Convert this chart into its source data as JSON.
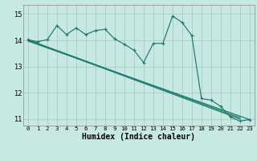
{
  "background_color": "#c8e8e4",
  "grid_color": "#a8ccc8",
  "line_color": "#1a7a6e",
  "xlabel": "Humidex (Indice chaleur)",
  "xlim": [
    -0.5,
    23.5
  ],
  "ylim": [
    10.75,
    15.35
  ],
  "yticks": [
    11,
    12,
    13,
    14,
    15
  ],
  "xticks": [
    0,
    1,
    2,
    3,
    4,
    5,
    6,
    7,
    8,
    9,
    10,
    11,
    12,
    13,
    14,
    15,
    16,
    17,
    18,
    19,
    20,
    21,
    22,
    23
  ],
  "zigzag_x": [
    0,
    1,
    2,
    3,
    4,
    5,
    6,
    7,
    8,
    9,
    10,
    11,
    12,
    13,
    14,
    15,
    16,
    17,
    18,
    19,
    20,
    21,
    22,
    23
  ],
  "zigzag_y": [
    14.02,
    13.95,
    14.02,
    14.56,
    14.22,
    14.47,
    14.22,
    14.37,
    14.42,
    14.05,
    13.85,
    13.62,
    13.15,
    13.88,
    13.88,
    14.92,
    14.68,
    14.18,
    11.78,
    11.72,
    11.48,
    11.08,
    10.92,
    10.98
  ],
  "diag_lines": [
    {
      "x0": 0,
      "y0": 14.02,
      "x1": 22,
      "y1": 11.05
    },
    {
      "x0": 0,
      "y0": 14.0,
      "x1": 22,
      "y1": 11.0
    },
    {
      "x0": 0,
      "y0": 13.97,
      "x1": 23,
      "y1": 10.98
    }
  ]
}
